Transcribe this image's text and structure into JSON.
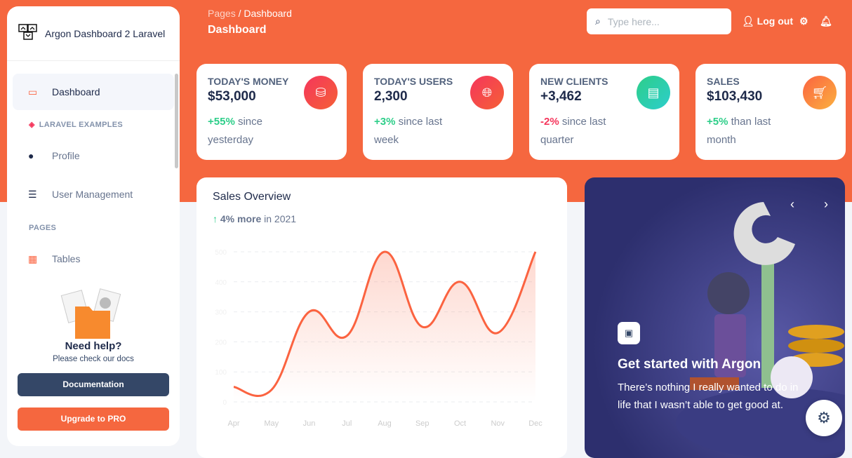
{
  "sidebar": {
    "brand": "Argon Dashboard 2 Laravel",
    "items": [
      {
        "label": "Dashboard",
        "icon": "monitor-icon"
      },
      {
        "label": "Profile",
        "icon": "user-icon"
      },
      {
        "label": "User Management",
        "icon": "list-icon"
      },
      {
        "label": "Tables",
        "icon": "calendar-icon"
      }
    ],
    "section_laravel": "LARAVEL EXAMPLES",
    "section_pages": "PAGES",
    "help_title": "Need help?",
    "help_text": "Please check our docs",
    "doc_btn": "Documentation",
    "pro_btn": "Upgrade to PRO"
  },
  "header": {
    "breadcrumb_root": "Pages",
    "breadcrumb_sep": "/",
    "breadcrumb_current": "Dashboard",
    "title": "Dashboard",
    "search_placeholder": "Type here...",
    "logout": "Log out"
  },
  "stats": [
    {
      "label": "TODAY'S MONEY",
      "value": "$53,000",
      "change": "+55%",
      "text": " since yesterday",
      "color": "#f5365c",
      "icon": "money-coins-icon"
    },
    {
      "label": "TODAY'S USERS",
      "value": "2,300",
      "change": "+3%",
      "text": " since last week",
      "color": "#f5365c",
      "icon": "world-icon"
    },
    {
      "label": "NEW CLIENTS",
      "value": "+3,462",
      "change": "-2%",
      "text": " since last quarter",
      "color": "#2dcecc",
      "icon": "paper-icon"
    },
    {
      "label": "SALES",
      "value": "$103,430",
      "change": "+5%",
      "text": " than last month",
      "color": "#fb6340",
      "icon": "cart-icon"
    }
  ],
  "sales": {
    "title": "Sales Overview",
    "change": "4% more",
    "period": " in 2021"
  },
  "chart_data": {
    "type": "line",
    "categories": [
      "Apr",
      "May",
      "Jun",
      "Jul",
      "Aug",
      "Sep",
      "Oct",
      "Nov",
      "Dec"
    ],
    "series": [
      {
        "values": [
          50,
          40,
          300,
          220,
          500,
          250,
          400,
          230,
          500
        ]
      }
    ],
    "yticks": [
      "0",
      "100",
      "200",
      "300",
      "400",
      "500"
    ],
    "ylim": [
      0,
      500
    ],
    "grid": true,
    "line_color": "#fb6340",
    "area_fill": true
  },
  "carousel": {
    "title": "Get started with Argon",
    "text": "There’s nothing I really wanted to do in life that I wasn’t able to get good at."
  }
}
